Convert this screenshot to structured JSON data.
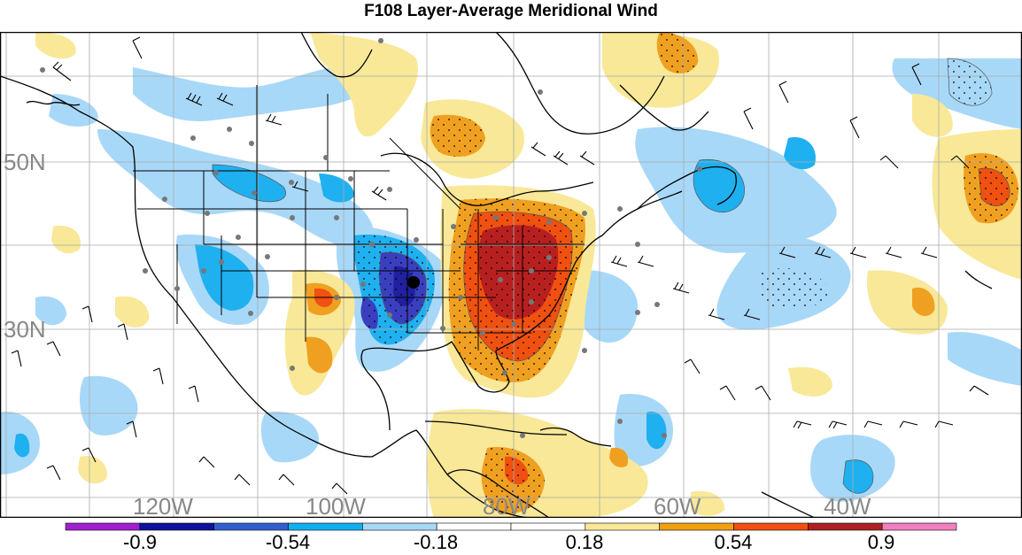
{
  "title": "F108 Layer-Average Meridional Wind",
  "lat_labels": [
    "50N",
    "30N"
  ],
  "lon_labels": [
    "120W",
    "100W",
    "80W",
    "60W",
    "40W"
  ],
  "colorbar": {
    "labels": [
      "-0.9",
      "-0.54",
      "-0.18",
      "0.18",
      "0.54",
      "0.9"
    ],
    "colors": [
      "#a020d0",
      "#1010a0",
      "#3060d0",
      "#10b0f0",
      "#a8d8f8",
      "#ffffff",
      "#ffffff",
      "#f8e898",
      "#f0a010",
      "#f05010",
      "#b02020",
      "#f080c0"
    ]
  },
  "legend_colors": {
    "strong_negative": "#3a3fc0",
    "mid_negative": "#1fb0f0",
    "weak_negative": "#a8d8f8",
    "weak_positive": "#f8e898",
    "mid_positive": "#f0a020",
    "strong_positive": "#f05010",
    "very_strong_positive": "#b82020"
  }
}
